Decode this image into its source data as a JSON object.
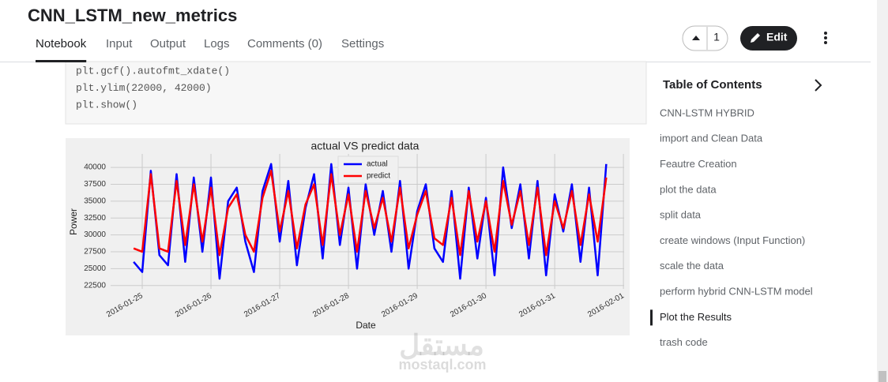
{
  "header": {
    "title": "CNN_LSTM_new_metrics",
    "tabs": [
      "Notebook",
      "Input",
      "Output",
      "Logs",
      "Comments (0)",
      "Settings"
    ],
    "active_tab": 0,
    "vote_count": "1",
    "edit": "Edit"
  },
  "code": {
    "lines": [
      "plt.gcf().autofmt_xdate()",
      "plt.ylim(22000, 42000)",
      "plt.show()"
    ]
  },
  "chart_data": {
    "type": "line",
    "title": "actual VS predict data",
    "x_label": "Date",
    "y_label": "Power",
    "x": [
      -0.125,
      0,
      0.125,
      0.25,
      0.375,
      0.5,
      0.625,
      0.75,
      0.875,
      1,
      1.125,
      1.25,
      1.375,
      1.5,
      1.625,
      1.75,
      1.875,
      2,
      2.125,
      2.25,
      2.375,
      2.5,
      2.625,
      2.75,
      2.875,
      3,
      3.125,
      3.25,
      3.375,
      3.5,
      3.625,
      3.75,
      3.875,
      4,
      4.125,
      4.25,
      4.375,
      4.5,
      4.625,
      4.75,
      4.875,
      5,
      5.125,
      5.25,
      5.375,
      5.5,
      5.625,
      5.75,
      5.875,
      6,
      6.125,
      6.25,
      6.375,
      6.5,
      6.625,
      6.75
    ],
    "series": [
      {
        "name": "actual",
        "color": "#0000ff",
        "values": [
          26000,
          24500,
          39500,
          27000,
          25500,
          39000,
          26000,
          38500,
          27500,
          38500,
          23500,
          35000,
          37000,
          29000,
          24500,
          36500,
          40500,
          29000,
          38000,
          25500,
          34000,
          39000,
          26500,
          40500,
          28500,
          37000,
          25000,
          37500,
          30000,
          36500,
          27500,
          38000,
          25000,
          33500,
          37500,
          28000,
          26000,
          36500,
          23500,
          37000,
          26500,
          35500,
          24000,
          40000,
          31000,
          37500,
          26500,
          38000,
          24000,
          36000,
          30500,
          37500,
          26000,
          37000,
          24000,
          40500
        ]
      },
      {
        "name": "predict",
        "color": "#ff0000",
        "values": [
          28000,
          27500,
          39000,
          28000,
          27500,
          38000,
          28500,
          37500,
          29000,
          37000,
          27000,
          34000,
          36000,
          30000,
          27500,
          35500,
          39500,
          30500,
          36500,
          28000,
          34500,
          37500,
          28500,
          39000,
          30000,
          36000,
          27500,
          36500,
          31000,
          35500,
          29000,
          37000,
          28000,
          33000,
          36500,
          29500,
          28500,
          35500,
          27000,
          36500,
          29000,
          35000,
          27500,
          38000,
          31500,
          36500,
          28500,
          37000,
          27000,
          35000,
          31000,
          36500,
          28500,
          36000,
          29000,
          38500
        ]
      }
    ],
    "xlim": [
      -0.46,
      7.01
    ],
    "xticks": [
      {
        "value": 0,
        "label": "2016-01-25"
      },
      {
        "value": 1,
        "label": "2016-01-26"
      },
      {
        "value": 2,
        "label": "2016-01-27"
      },
      {
        "value": 3,
        "label": "2016-01-28"
      },
      {
        "value": 4,
        "label": "2016-01-29"
      },
      {
        "value": 5,
        "label": "2016-01-30"
      },
      {
        "value": 6,
        "label": "2016-01-31"
      },
      {
        "value": 7,
        "label": "2016-02-01"
      }
    ],
    "ylim": [
      22000,
      42000
    ],
    "yticks": [
      22500,
      25000,
      27500,
      30000,
      32500,
      35000,
      37500,
      40000
    ],
    "grid": true,
    "legend": "upper center"
  },
  "toc": {
    "title": "Table of Contents",
    "items": [
      "CNN-LSTM HYBRID",
      "import and Clean Data",
      "Feautre Creation",
      "plot the data",
      "split data",
      "create windows (Input Function)",
      "scale the data",
      "perform hybrid CNN-LSTM model",
      "Plot the Results",
      "trash code"
    ],
    "active": 8
  },
  "watermark": {
    "arabic": "مستقل",
    "latin": "mostaql.com"
  }
}
